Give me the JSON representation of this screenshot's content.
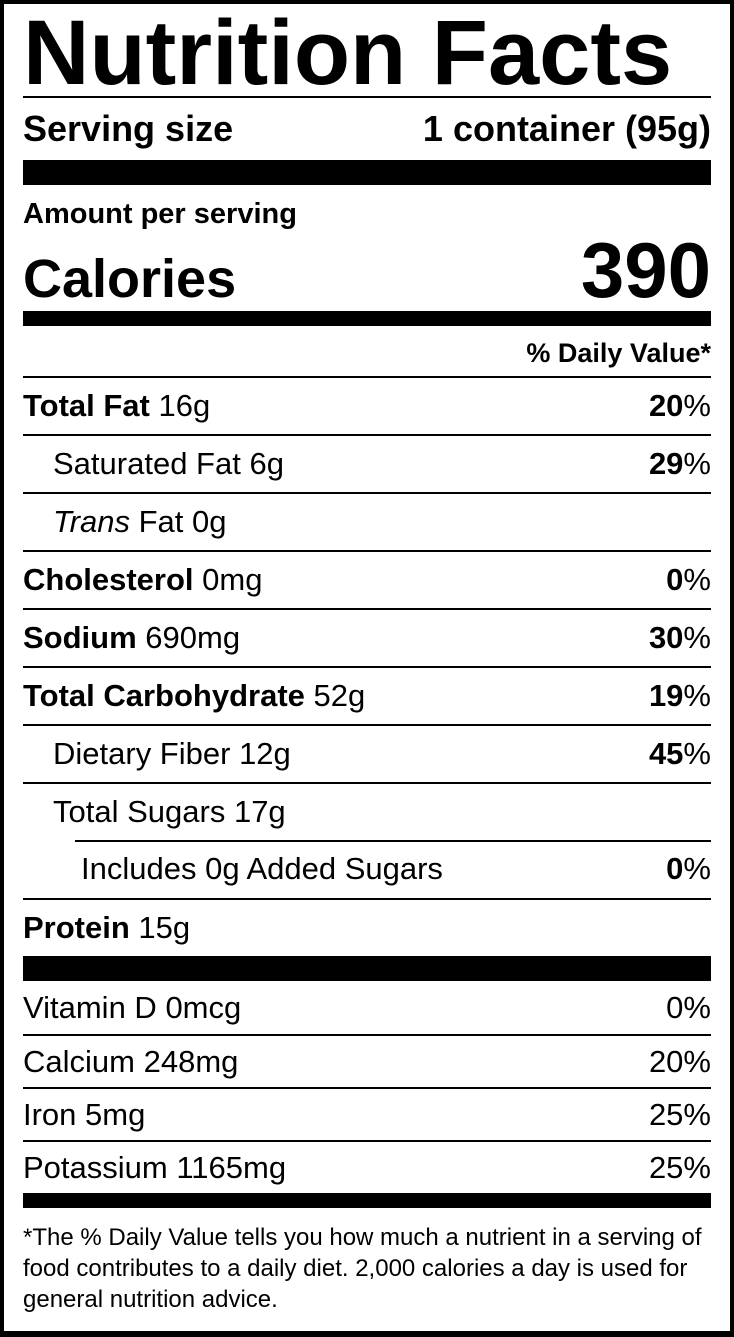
{
  "colors": {
    "ink": "#000000",
    "paper": "#ffffff"
  },
  "label": {
    "title": "Nutrition Facts",
    "serving_size": {
      "label": "Serving size",
      "value": "1 container (95g)"
    },
    "amount_per_serving": "Amount per serving",
    "calories": {
      "label": "Calories",
      "value": "390"
    },
    "daily_value_header": "% Daily Value*",
    "percent_symbol": "%",
    "nutrients": [
      {
        "name": "Total Fat",
        "amount": "16g",
        "dv": "20"
      },
      {
        "name": "Saturated Fat",
        "amount": "6g",
        "dv": "29"
      },
      {
        "name_italic": "Trans",
        "name": "Fat",
        "amount": "0g"
      },
      {
        "name": "Cholesterol",
        "amount": "0mg",
        "dv": "0"
      },
      {
        "name": "Sodium",
        "amount": "690mg",
        "dv": "30"
      },
      {
        "name": "Total Carbohydrate",
        "amount": "52g",
        "dv": "19"
      },
      {
        "name": "Dietary Fiber",
        "amount": "12g",
        "dv": "45"
      },
      {
        "name": "Total Sugars",
        "amount": "17g"
      },
      {
        "name": "Includes 0g Added Sugars",
        "dv": "0"
      },
      {
        "name": "Protein",
        "amount": "15g"
      }
    ],
    "micronutrients": [
      {
        "name": "Vitamin D",
        "amount": "0mcg",
        "dv": "0"
      },
      {
        "name": "Calcium",
        "amount": "248mg",
        "dv": "20"
      },
      {
        "name": "Iron",
        "amount": "5mg",
        "dv": "25"
      },
      {
        "name": "Potassium",
        "amount": "1165mg",
        "dv": "25"
      }
    ],
    "footnote": "*The % Daily Value tells you how much a nutrient in a serving of food contributes to a daily diet. 2,000 calories a day is used for general nutrition advice."
  }
}
